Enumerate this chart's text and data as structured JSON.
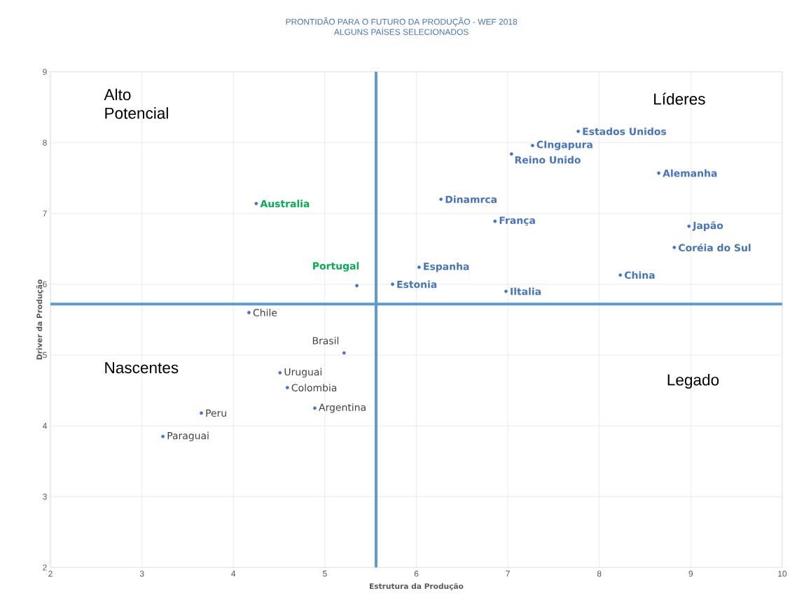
{
  "chart_data": {
    "type": "scatter",
    "title": "PRONTIDÃO PARA O FUTURO DA PRODUÇÃO -   WEF 2018",
    "subtitle": "ALGUNS PAÍSES SELECIONADOS",
    "xlabel": "Estrutura da Produção",
    "ylabel": "Driver da Produção",
    "xlim": [
      2,
      10
    ],
    "ylim": [
      2,
      9
    ],
    "xticks": [
      2,
      3,
      4,
      5,
      6,
      7,
      8,
      9,
      10
    ],
    "yticks": [
      2,
      3,
      4,
      5,
      6,
      7,
      8,
      9
    ],
    "grid": true,
    "marker": "circle",
    "series": [
      {
        "color": "#4472c4",
        "x": [
          7.77,
          7.27,
          7.04,
          8.65,
          6.27,
          6.86,
          8.98,
          8.82,
          8.23,
          6.03,
          5.74,
          6.98
        ],
        "values": [
          8.16,
          7.96,
          7.84,
          7.57,
          7.2,
          6.89,
          6.82,
          6.52,
          6.13,
          6.24,
          6.0,
          5.9
        ],
        "value_labels": [
          "Estados Unidos",
          "CIngapura",
          "Reino Unido",
          "Alemanha",
          "Dinamrca",
          "França",
          "Japão",
          "Coréia do Sul",
          "China",
          "Espanha",
          "Estonia",
          "Iltalia"
        ]
      },
      {
        "color": "#4472c4",
        "x": [
          4.25,
          5.35
        ],
        "values": [
          7.14,
          5.98
        ],
        "value_labels": [
          "Australia",
          "Portugal"
        ]
      },
      {
        "color": "#4472c4",
        "x": [
          4.17,
          5.21,
          4.51,
          4.59,
          4.89,
          3.65,
          3.23
        ],
        "values": [
          5.6,
          5.03,
          4.75,
          4.54,
          4.25,
          4.18,
          3.85
        ],
        "value_labels": [
          "Chile",
          "Brasil",
          "Uruguai",
          "Colombia",
          "Argentina",
          "Peru",
          "Paraguai"
        ]
      }
    ],
    "ref_lines": [
      {
        "axis": "x",
        "value": 5.56,
        "color": "#5b9bd5"
      },
      {
        "axis": "y",
        "value": 5.72,
        "color": "#5b9bd5"
      }
    ],
    "annotations": [
      "Alto\nPotencial",
      "Líderes",
      "Nascentes",
      "Legado"
    ]
  }
}
